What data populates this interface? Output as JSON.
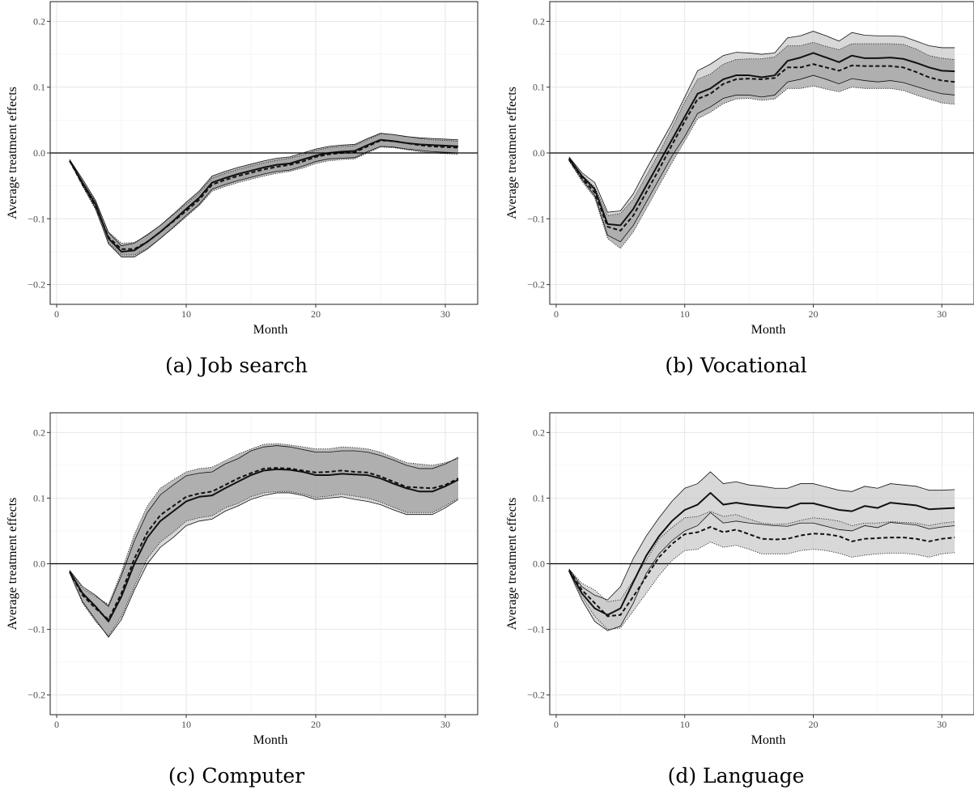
{
  "chart_data": [
    {
      "type": "area",
      "caption": "(a) Job search",
      "xlabel": "Month",
      "ylabel": "Average treatment effects",
      "xlim": [
        -0.5,
        32.5
      ],
      "ylim": [
        -0.23,
        0.23
      ],
      "x_ticks": [
        0,
        10,
        20,
        30
      ],
      "y_ticks": [
        -0.2,
        -0.1,
        0.0,
        0.1,
        0.2
      ],
      "y_tick_labels": [
        "−0.2",
        "−0.1",
        "0.0",
        "0.1",
        "0.2"
      ],
      "x": [
        1,
        2,
        3,
        4,
        5,
        6,
        7,
        8,
        9,
        10,
        11,
        12,
        13,
        14,
        15,
        16,
        17,
        18,
        19,
        20,
        21,
        22,
        23,
        24,
        25,
        26,
        27,
        28,
        29,
        30,
        31
      ],
      "series": [
        {
          "style": "solid",
          "values": [
            -0.012,
            -0.045,
            -0.078,
            -0.13,
            -0.15,
            -0.148,
            -0.135,
            -0.12,
            -0.103,
            -0.085,
            -0.068,
            -0.045,
            -0.038,
            -0.032,
            -0.027,
            -0.022,
            -0.018,
            -0.016,
            -0.01,
            -0.004,
            0.0,
            0.002,
            0.003,
            0.012,
            0.02,
            0.018,
            0.015,
            0.013,
            0.012,
            0.011,
            0.01
          ]
        },
        {
          "style": "dashed",
          "values": [
            -0.012,
            -0.048,
            -0.08,
            -0.128,
            -0.146,
            -0.146,
            -0.135,
            -0.12,
            -0.104,
            -0.088,
            -0.071,
            -0.048,
            -0.041,
            -0.035,
            -0.03,
            -0.025,
            -0.021,
            -0.018,
            -0.013,
            -0.006,
            -0.002,
            0.0,
            0.001,
            0.01,
            0.019,
            0.018,
            0.015,
            0.012,
            0.01,
            0.009,
            0.008
          ]
        }
      ],
      "bands": [
        {
          "shade": "#9e9e9e",
          "border": "solid",
          "lower": [
            -0.012,
            -0.048,
            -0.084,
            -0.138,
            -0.158,
            -0.158,
            -0.146,
            -0.13,
            -0.113,
            -0.095,
            -0.078,
            -0.055,
            -0.048,
            -0.042,
            -0.037,
            -0.032,
            -0.028,
            -0.026,
            -0.02,
            -0.013,
            -0.009,
            -0.008,
            -0.007,
            0.002,
            0.01,
            0.009,
            0.006,
            0.004,
            0.002,
            0.001,
            0.0
          ],
          "upper": [
            -0.01,
            -0.04,
            -0.072,
            -0.121,
            -0.141,
            -0.137,
            -0.124,
            -0.11,
            -0.093,
            -0.075,
            -0.058,
            -0.035,
            -0.028,
            -0.022,
            -0.017,
            -0.012,
            -0.008,
            -0.006,
            0.0,
            0.006,
            0.01,
            0.012,
            0.013,
            0.022,
            0.03,
            0.028,
            0.025,
            0.023,
            0.022,
            0.021,
            0.02
          ]
        },
        {
          "shade": "#9e9e9e",
          "border": "dotted",
          "lower": [
            -0.012,
            -0.051,
            -0.086,
            -0.136,
            -0.155,
            -0.155,
            -0.145,
            -0.13,
            -0.114,
            -0.097,
            -0.08,
            -0.058,
            -0.051,
            -0.045,
            -0.04,
            -0.035,
            -0.031,
            -0.028,
            -0.023,
            -0.016,
            -0.012,
            -0.01,
            -0.009,
            0.0,
            0.009,
            0.008,
            0.005,
            0.002,
            0.0,
            -0.001,
            -0.002
          ],
          "upper": [
            -0.01,
            -0.044,
            -0.074,
            -0.12,
            -0.137,
            -0.136,
            -0.125,
            -0.11,
            -0.094,
            -0.078,
            -0.061,
            -0.038,
            -0.031,
            -0.025,
            -0.02,
            -0.015,
            -0.011,
            -0.008,
            -0.003,
            0.004,
            0.008,
            0.01,
            0.011,
            0.02,
            0.029,
            0.028,
            0.025,
            0.022,
            0.02,
            0.019,
            0.018
          ]
        }
      ]
    },
    {
      "type": "area",
      "caption": "(b) Vocational",
      "xlabel": "Month",
      "ylabel": "Average treatment effects",
      "xlim": [
        -0.5,
        32.5
      ],
      "ylim": [
        -0.23,
        0.23
      ],
      "x_ticks": [
        0,
        10,
        20,
        30
      ],
      "y_ticks": [
        -0.2,
        -0.1,
        0.0,
        0.1,
        0.2
      ],
      "y_tick_labels": [
        "−0.2",
        "−0.1",
        "0.0",
        "0.1",
        "0.2"
      ],
      "x": [
        1,
        2,
        3,
        4,
        5,
        6,
        7,
        8,
        9,
        10,
        11,
        12,
        13,
        14,
        15,
        16,
        17,
        18,
        19,
        20,
        21,
        22,
        23,
        24,
        25,
        26,
        27,
        28,
        29,
        30,
        31
      ],
      "series": [
        {
          "style": "solid",
          "values": [
            -0.008,
            -0.035,
            -0.055,
            -0.108,
            -0.11,
            -0.085,
            -0.05,
            -0.015,
            0.02,
            0.055,
            0.09,
            0.098,
            0.112,
            0.118,
            0.118,
            0.115,
            0.118,
            0.14,
            0.145,
            0.152,
            0.145,
            0.138,
            0.148,
            0.144,
            0.144,
            0.145,
            0.143,
            0.137,
            0.13,
            0.125,
            0.124
          ]
        },
        {
          "style": "dashed",
          "values": [
            -0.01,
            -0.038,
            -0.06,
            -0.112,
            -0.118,
            -0.095,
            -0.06,
            -0.025,
            0.012,
            0.048,
            0.082,
            0.09,
            0.105,
            0.112,
            0.113,
            0.112,
            0.114,
            0.13,
            0.13,
            0.135,
            0.13,
            0.125,
            0.133,
            0.132,
            0.132,
            0.132,
            0.13,
            0.123,
            0.115,
            0.11,
            0.108
          ]
        }
      ],
      "bands": [
        {
          "shade": "#c8c8c8",
          "border": "solid",
          "lower": [
            -0.01,
            -0.04,
            -0.065,
            -0.125,
            -0.135,
            -0.11,
            -0.075,
            -0.04,
            -0.005,
            0.025,
            0.06,
            0.07,
            0.083,
            0.088,
            0.088,
            0.085,
            0.088,
            0.108,
            0.112,
            0.118,
            0.112,
            0.105,
            0.113,
            0.11,
            0.108,
            0.11,
            0.107,
            0.101,
            0.095,
            0.09,
            0.088
          ],
          "upper": [
            -0.006,
            -0.03,
            -0.045,
            -0.09,
            -0.088,
            -0.062,
            -0.025,
            0.01,
            0.045,
            0.085,
            0.125,
            0.135,
            0.148,
            0.153,
            0.152,
            0.15,
            0.152,
            0.175,
            0.178,
            0.185,
            0.178,
            0.17,
            0.183,
            0.179,
            0.178,
            0.178,
            0.177,
            0.17,
            0.163,
            0.16,
            0.16
          ]
        },
        {
          "shade": "#9e9e9e",
          "border": "dotted",
          "lower": [
            -0.012,
            -0.043,
            -0.068,
            -0.13,
            -0.145,
            -0.12,
            -0.085,
            -0.05,
            -0.015,
            0.018,
            0.052,
            0.062,
            0.075,
            0.082,
            0.083,
            0.08,
            0.082,
            0.098,
            0.098,
            0.102,
            0.097,
            0.093,
            0.1,
            0.098,
            0.098,
            0.098,
            0.095,
            0.088,
            0.082,
            0.076,
            0.074
          ],
          "upper": [
            -0.008,
            -0.033,
            -0.052,
            -0.095,
            -0.092,
            -0.07,
            -0.035,
            0.0,
            0.038,
            0.078,
            0.112,
            0.12,
            0.135,
            0.142,
            0.143,
            0.143,
            0.146,
            0.163,
            0.163,
            0.168,
            0.162,
            0.157,
            0.166,
            0.166,
            0.166,
            0.166,
            0.165,
            0.158,
            0.148,
            0.144,
            0.142
          ]
        }
      ]
    },
    {
      "type": "area",
      "caption": "(c) Computer",
      "xlabel": "Month",
      "ylabel": "Average treatment effects",
      "xlim": [
        -0.5,
        32.5
      ],
      "ylim": [
        -0.23,
        0.23
      ],
      "x_ticks": [
        0,
        10,
        20,
        30
      ],
      "y_ticks": [
        -0.2,
        -0.1,
        0.0,
        0.1,
        0.2
      ],
      "y_tick_labels": [
        "−0.2",
        "−0.1",
        "0.0",
        "0.1",
        "0.2"
      ],
      "x": [
        1,
        2,
        3,
        4,
        5,
        6,
        7,
        8,
        9,
        10,
        11,
        12,
        13,
        14,
        15,
        16,
        17,
        18,
        19,
        20,
        21,
        22,
        23,
        24,
        25,
        26,
        27,
        28,
        29,
        30,
        31
      ],
      "series": [
        {
          "style": "solid",
          "values": [
            -0.012,
            -0.045,
            -0.065,
            -0.088,
            -0.05,
            0.0,
            0.04,
            0.065,
            0.08,
            0.095,
            0.102,
            0.104,
            0.115,
            0.125,
            0.135,
            0.142,
            0.144,
            0.143,
            0.14,
            0.135,
            0.135,
            0.137,
            0.136,
            0.135,
            0.13,
            0.122,
            0.115,
            0.11,
            0.11,
            0.118,
            0.128
          ]
        },
        {
          "style": "dashed",
          "values": [
            -0.012,
            -0.048,
            -0.068,
            -0.085,
            -0.045,
            0.008,
            0.048,
            0.074,
            0.088,
            0.102,
            0.107,
            0.11,
            0.12,
            0.13,
            0.138,
            0.145,
            0.146,
            0.145,
            0.142,
            0.139,
            0.14,
            0.142,
            0.14,
            0.139,
            0.133,
            0.125,
            0.117,
            0.116,
            0.115,
            0.12,
            0.13
          ]
        }
      ],
      "bands": [
        {
          "shade": "#c8c8c8",
          "border": "solid",
          "lower": [
            -0.014,
            -0.058,
            -0.085,
            -0.112,
            -0.085,
            -0.04,
            0.0,
            0.025,
            0.04,
            0.058,
            0.065,
            0.068,
            0.08,
            0.088,
            0.098,
            0.104,
            0.108,
            0.108,
            0.104,
            0.098,
            0.1,
            0.102,
            0.098,
            0.095,
            0.09,
            0.082,
            0.075,
            0.075,
            0.075,
            0.085,
            0.098
          ],
          "upper": [
            -0.01,
            -0.035,
            -0.048,
            -0.065,
            -0.018,
            0.035,
            0.078,
            0.105,
            0.12,
            0.134,
            0.138,
            0.14,
            0.152,
            0.16,
            0.172,
            0.178,
            0.18,
            0.178,
            0.174,
            0.17,
            0.17,
            0.172,
            0.172,
            0.17,
            0.165,
            0.158,
            0.15,
            0.145,
            0.145,
            0.152,
            0.162
          ]
        },
        {
          "shade": "#9e9e9e",
          "border": "dotted",
          "lower": [
            -0.014,
            -0.06,
            -0.088,
            -0.11,
            -0.08,
            -0.035,
            0.008,
            0.033,
            0.048,
            0.065,
            0.07,
            0.073,
            0.085,
            0.092,
            0.102,
            0.108,
            0.11,
            0.11,
            0.106,
            0.101,
            0.103,
            0.106,
            0.103,
            0.1,
            0.094,
            0.086,
            0.078,
            0.078,
            0.078,
            0.088,
            0.1
          ],
          "upper": [
            -0.01,
            -0.038,
            -0.05,
            -0.062,
            -0.012,
            0.045,
            0.088,
            0.115,
            0.128,
            0.14,
            0.145,
            0.147,
            0.157,
            0.167,
            0.175,
            0.182,
            0.183,
            0.181,
            0.178,
            0.175,
            0.175,
            0.178,
            0.177,
            0.175,
            0.17,
            0.162,
            0.154,
            0.152,
            0.15,
            0.154,
            0.16
          ]
        }
      ]
    },
    {
      "type": "area",
      "caption": "(d) Language",
      "xlabel": "Month",
      "ylabel": "Average treatment effects",
      "xlim": [
        -0.5,
        32.5
      ],
      "ylim": [
        -0.23,
        0.23
      ],
      "x_ticks": [
        0,
        10,
        20,
        30
      ],
      "y_ticks": [
        -0.2,
        -0.1,
        0.0,
        0.1,
        0.2
      ],
      "y_tick_labels": [
        "−0.2",
        "−0.1",
        "0.0",
        "0.1",
        "0.2"
      ],
      "x": [
        1,
        2,
        3,
        4,
        5,
        6,
        7,
        8,
        9,
        10,
        11,
        12,
        13,
        14,
        15,
        16,
        17,
        18,
        19,
        20,
        21,
        22,
        23,
        24,
        25,
        26,
        27,
        28,
        29,
        30,
        31
      ],
      "series": [
        {
          "style": "solid",
          "values": [
            -0.01,
            -0.045,
            -0.068,
            -0.078,
            -0.068,
            -0.028,
            0.012,
            0.042,
            0.065,
            0.082,
            0.09,
            0.108,
            0.09,
            0.093,
            0.09,
            0.088,
            0.086,
            0.085,
            0.092,
            0.092,
            0.087,
            0.082,
            0.08,
            0.088,
            0.085,
            0.093,
            0.091,
            0.089,
            0.083,
            0.084,
            0.085
          ]
        },
        {
          "style": "dashed",
          "values": [
            -0.01,
            -0.04,
            -0.06,
            -0.08,
            -0.078,
            -0.05,
            -0.02,
            0.01,
            0.03,
            0.045,
            0.048,
            0.056,
            0.048,
            0.052,
            0.045,
            0.038,
            0.037,
            0.038,
            0.043,
            0.046,
            0.045,
            0.042,
            0.034,
            0.038,
            0.039,
            0.04,
            0.04,
            0.038,
            0.034,
            0.038,
            0.04
          ]
        }
      ],
      "bands": [
        {
          "shade": "#c8c8c8",
          "border": "solid",
          "lower": [
            -0.012,
            -0.055,
            -0.088,
            -0.102,
            -0.095,
            -0.06,
            -0.015,
            0.015,
            0.035,
            0.05,
            0.058,
            0.078,
            0.062,
            0.065,
            0.062,
            0.06,
            0.058,
            0.057,
            0.062,
            0.062,
            0.057,
            0.052,
            0.05,
            0.058,
            0.055,
            0.063,
            0.061,
            0.059,
            0.053,
            0.056,
            0.058
          ],
          "upper": [
            -0.008,
            -0.035,
            -0.048,
            -0.055,
            -0.035,
            0.008,
            0.042,
            0.07,
            0.095,
            0.115,
            0.122,
            0.14,
            0.122,
            0.125,
            0.12,
            0.118,
            0.115,
            0.115,
            0.122,
            0.122,
            0.117,
            0.112,
            0.11,
            0.118,
            0.115,
            0.122,
            0.12,
            0.118,
            0.112,
            0.112,
            0.113
          ]
        },
        {
          "shade": "#c8c8c8",
          "border": "dotted",
          "lower": [
            -0.012,
            -0.05,
            -0.08,
            -0.1,
            -0.098,
            -0.072,
            -0.045,
            -0.018,
            0.005,
            0.02,
            0.022,
            0.033,
            0.025,
            0.028,
            0.022,
            0.015,
            0.015,
            0.015,
            0.02,
            0.022,
            0.02,
            0.016,
            0.01,
            0.013,
            0.015,
            0.016,
            0.016,
            0.014,
            0.01,
            0.015,
            0.017
          ],
          "upper": [
            -0.008,
            -0.03,
            -0.04,
            -0.058,
            -0.055,
            -0.025,
            0.005,
            0.038,
            0.055,
            0.07,
            0.072,
            0.08,
            0.072,
            0.075,
            0.068,
            0.062,
            0.06,
            0.061,
            0.066,
            0.07,
            0.068,
            0.065,
            0.058,
            0.062,
            0.062,
            0.064,
            0.063,
            0.062,
            0.058,
            0.062,
            0.064
          ]
        }
      ]
    }
  ]
}
